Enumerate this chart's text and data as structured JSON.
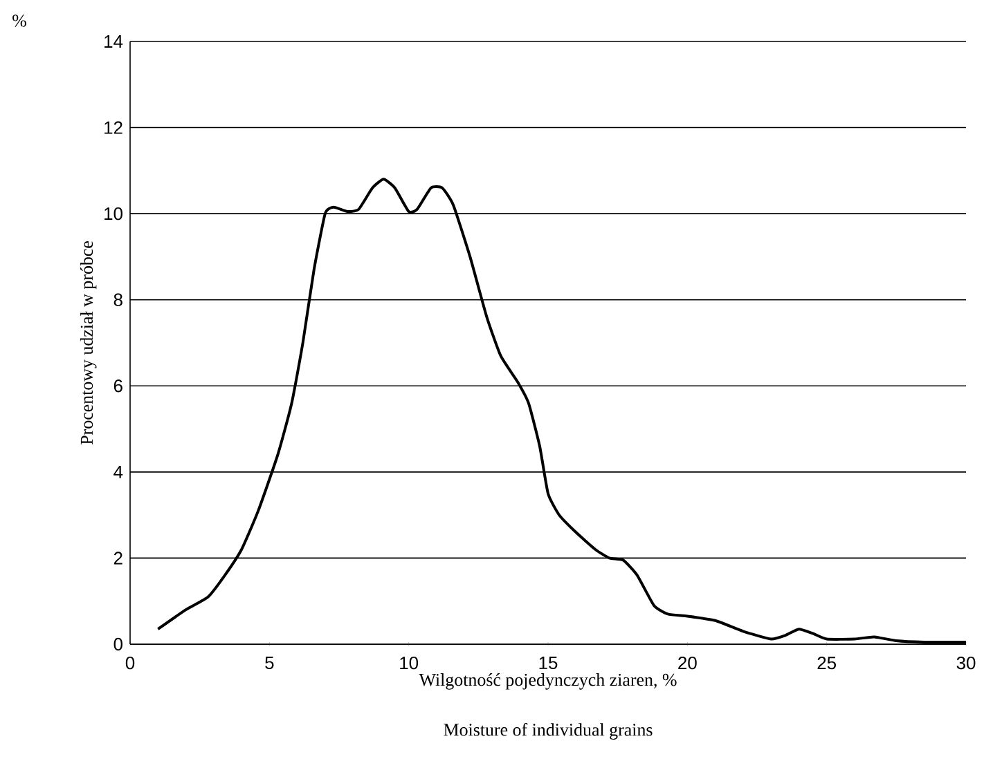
{
  "chart_data": {
    "type": "line",
    "xlabel": "Wilgotność pojedynczych ziaren, %",
    "ylabel": "Procentowy udział w próbce",
    "annotations": [
      "%",
      "Moisture of individual grains"
    ],
    "xlim": [
      0,
      30
    ],
    "xticks": [
      0,
      5,
      10,
      15,
      20,
      25,
      30
    ],
    "ylim": [
      0,
      14
    ],
    "yticks": [
      0,
      2,
      4,
      6,
      8,
      10,
      12,
      14
    ],
    "grid": "y",
    "series": [
      {
        "color": "#000000",
        "x": [
          1,
          2,
          2.8,
          3.4,
          4,
          4.6,
          5.3,
          5.8,
          6.2,
          6.6,
          7.0,
          7.3,
          7.8,
          8.2,
          8.7,
          9.1,
          9.5,
          10.0,
          10.3,
          10.8,
          11.2,
          11.6,
          12.2,
          12.8,
          13.3,
          13.9,
          14.3,
          14.7,
          15.0,
          15.4,
          16.0,
          16.7,
          17.2,
          17.7,
          18.2,
          18.8,
          19.3,
          20.0,
          21.0,
          22.0,
          23.0,
          23.5,
          24.0,
          24.5,
          25.0,
          26.0,
          26.7,
          27.5,
          28.5,
          30.0
        ],
        "values": [
          0.35,
          0.8,
          1.1,
          1.6,
          2.2,
          3.1,
          4.4,
          5.6,
          7.0,
          8.7,
          10.0,
          10.15,
          10.05,
          10.1,
          10.6,
          10.8,
          10.6,
          10.05,
          10.1,
          10.6,
          10.6,
          10.2,
          9.0,
          7.6,
          6.7,
          6.1,
          5.6,
          4.6,
          3.5,
          3.0,
          2.6,
          2.2,
          2.0,
          1.95,
          1.6,
          0.9,
          0.7,
          0.65,
          0.55,
          0.3,
          0.12,
          0.2,
          0.35,
          0.25,
          0.12,
          0.12,
          0.17,
          0.08,
          0.05,
          0.05
        ]
      }
    ]
  }
}
